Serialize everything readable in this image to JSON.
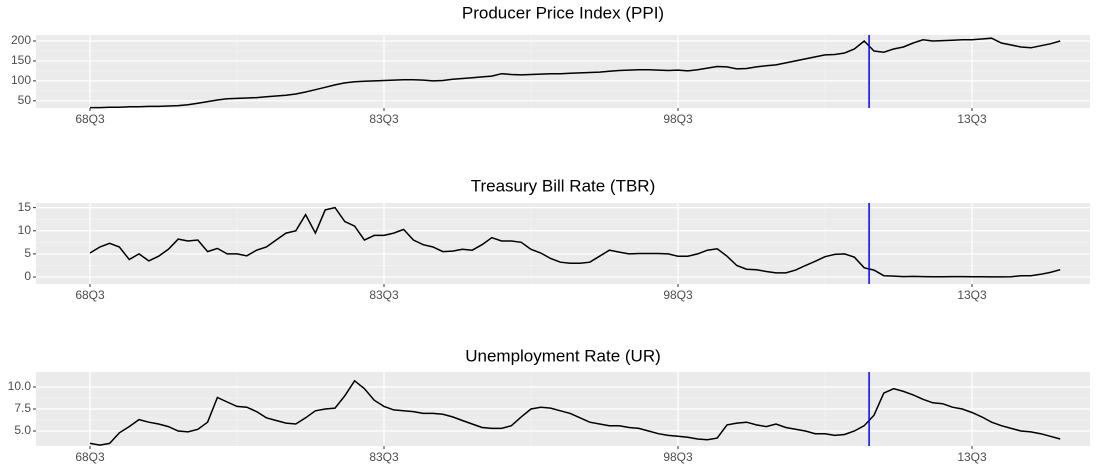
{
  "chart_data": [
    {
      "type": "line",
      "title": "Producer Price Index (PPI)",
      "categories": [
        "68Q3",
        null,
        null,
        null,
        null,
        null,
        null,
        null,
        null,
        null,
        null,
        null,
        null,
        null,
        null,
        null,
        null,
        null,
        null,
        null,
        null,
        null,
        null,
        null,
        null,
        null,
        null,
        null,
        null,
        null,
        "83Q3",
        null,
        null,
        null,
        null,
        null,
        null,
        null,
        null,
        null,
        null,
        null,
        null,
        null,
        null,
        null,
        null,
        null,
        null,
        null,
        null,
        null,
        null,
        null,
        null,
        null,
        null,
        null,
        null,
        null,
        "98Q3",
        null,
        null,
        null,
        null,
        null,
        null,
        null,
        null,
        null,
        null,
        null,
        null,
        null,
        null,
        null,
        null,
        null,
        null,
        null,
        null,
        null,
        null,
        null,
        null,
        null,
        null,
        null,
        null,
        null,
        "13Q3",
        null,
        null,
        null,
        null,
        null,
        null,
        null,
        null,
        null
      ],
      "values": [
        33,
        33,
        34,
        34,
        35,
        35,
        36,
        36,
        37,
        38,
        40,
        44,
        48,
        52,
        55,
        56,
        57,
        58,
        60,
        62,
        64,
        67,
        72,
        78,
        84,
        90,
        95,
        98,
        99,
        100,
        101,
        102,
        103,
        103,
        102,
        100,
        101,
        104,
        106,
        108,
        110,
        112,
        118,
        116,
        115,
        116,
        117,
        118,
        118,
        119,
        120,
        121,
        122,
        124,
        126,
        127,
        128,
        128,
        127,
        126,
        127,
        125,
        128,
        132,
        136,
        135,
        130,
        131,
        135,
        138,
        140,
        145,
        150,
        155,
        160,
        165,
        166,
        170,
        180,
        200,
        175,
        172,
        180,
        185,
        195,
        203,
        200,
        201,
        202,
        203,
        203,
        205,
        207,
        195,
        190,
        185,
        183,
        188,
        193,
        200
      ],
      "color": "#000000",
      "ylim": [
        32,
        215
      ],
      "yticks": [
        50,
        100,
        150,
        200
      ],
      "grid": true,
      "vline": {
        "at": 79.5,
        "color": "#0000ff"
      }
    },
    {
      "type": "line",
      "title": "Treasury Bill Rate (TBR)",
      "categories": [
        "68Q3",
        null,
        null,
        null,
        null,
        null,
        null,
        null,
        null,
        null,
        null,
        null,
        null,
        null,
        null,
        null,
        null,
        null,
        null,
        null,
        null,
        null,
        null,
        null,
        null,
        null,
        null,
        null,
        null,
        null,
        "83Q3",
        null,
        null,
        null,
        null,
        null,
        null,
        null,
        null,
        null,
        null,
        null,
        null,
        null,
        null,
        null,
        null,
        null,
        null,
        null,
        null,
        null,
        null,
        null,
        null,
        null,
        null,
        null,
        null,
        null,
        "98Q3",
        null,
        null,
        null,
        null,
        null,
        null,
        null,
        null,
        null,
        null,
        null,
        null,
        null,
        null,
        null,
        null,
        null,
        null,
        null,
        null,
        null,
        null,
        null,
        null,
        null,
        null,
        null,
        null,
        null,
        "13Q3",
        null,
        null,
        null,
        null,
        null,
        null,
        null,
        null,
        null
      ],
      "values": [
        5.2,
        6.5,
        7.3,
        6.5,
        3.8,
        5,
        3.5,
        4.5,
        6,
        8.2,
        7.8,
        8,
        5.5,
        6.2,
        5,
        5,
        4.6,
        5.8,
        6.5,
        8,
        9.5,
        10,
        13.5,
        9.5,
        14.5,
        15,
        12,
        11,
        8,
        9,
        9,
        9.5,
        10.3,
        8,
        7,
        6.5,
        5.5,
        5.6,
        6,
        5.8,
        7,
        8.5,
        7.8,
        7.8,
        7.5,
        6,
        5.2,
        4,
        3.2,
        3,
        3,
        3.2,
        4.5,
        5.8,
        5.4,
        5,
        5.1,
        5.1,
        5.1,
        5,
        4.5,
        4.5,
        5,
        5.8,
        6.1,
        4.5,
        2.5,
        1.7,
        1.6,
        1.2,
        0.9,
        0.9,
        1.5,
        2.5,
        3.4,
        4.4,
        4.9,
        5,
        4.3,
        2,
        1.5,
        0.3,
        0.2,
        0.1,
        0.15,
        0.1,
        0.05,
        0.08,
        0.1,
        0.1,
        0.05,
        0.05,
        0.03,
        0.03,
        0.05,
        0.3,
        0.3,
        0.6,
        1,
        1.6
      ],
      "color": "#000000",
      "ylim": [
        -1.5,
        16
      ],
      "yticks": [
        0,
        5,
        10,
        15
      ],
      "grid": true,
      "vline": {
        "at": 79.5,
        "color": "#0000ff"
      }
    },
    {
      "type": "line",
      "title": "Unemployment Rate (UR)",
      "categories": [
        "68Q3",
        null,
        null,
        null,
        null,
        null,
        null,
        null,
        null,
        null,
        null,
        null,
        null,
        null,
        null,
        null,
        null,
        null,
        null,
        null,
        null,
        null,
        null,
        null,
        null,
        null,
        null,
        null,
        null,
        null,
        "83Q3",
        null,
        null,
        null,
        null,
        null,
        null,
        null,
        null,
        null,
        null,
        null,
        null,
        null,
        null,
        null,
        null,
        null,
        null,
        null,
        null,
        null,
        null,
        null,
        null,
        null,
        null,
        null,
        null,
        null,
        "98Q3",
        null,
        null,
        null,
        null,
        null,
        null,
        null,
        null,
        null,
        null,
        null,
        null,
        null,
        null,
        null,
        null,
        null,
        null,
        null,
        null,
        null,
        null,
        null,
        null,
        null,
        null,
        null,
        null,
        null,
        "13Q3",
        null,
        null,
        null,
        null,
        null,
        null,
        null,
        null,
        null
      ],
      "values": [
        3.6,
        3.4,
        3.6,
        4.8,
        5.5,
        6.3,
        6,
        5.8,
        5.5,
        5,
        4.9,
        5.2,
        6,
        8.8,
        8.3,
        7.8,
        7.7,
        7.2,
        6.5,
        6.2,
        5.9,
        5.8,
        6.5,
        7.3,
        7.5,
        7.6,
        9,
        10.7,
        9.8,
        8.5,
        7.8,
        7.4,
        7.3,
        7.2,
        7,
        7,
        6.9,
        6.6,
        6.2,
        5.8,
        5.4,
        5.3,
        5.3,
        5.6,
        6.6,
        7.5,
        7.7,
        7.6,
        7.3,
        7,
        6.5,
        6,
        5.8,
        5.6,
        5.6,
        5.4,
        5.3,
        5,
        4.7,
        4.5,
        4.4,
        4.3,
        4.1,
        4,
        4.2,
        5.7,
        5.9,
        6,
        5.7,
        5.5,
        5.8,
        5.4,
        5.2,
        5,
        4.7,
        4.7,
        4.5,
        4.6,
        5,
        5.6,
        6.8,
        9.3,
        9.8,
        9.5,
        9.1,
        8.6,
        8.2,
        8.1,
        7.7,
        7.5,
        7.1,
        6.6,
        6,
        5.6,
        5.3,
        5,
        4.9,
        4.7,
        4.4,
        4.1
      ],
      "color": "#000000",
      "ylim": [
        3.3,
        11.7
      ],
      "yticks": [
        {
          "value": 5,
          "label": "5.0"
        },
        {
          "value": 7.5,
          "label": "7.5"
        },
        {
          "value": 10,
          "label": "10.0"
        }
      ],
      "grid": true,
      "vline": {
        "at": 79.5,
        "color": "#0000ff"
      }
    }
  ]
}
